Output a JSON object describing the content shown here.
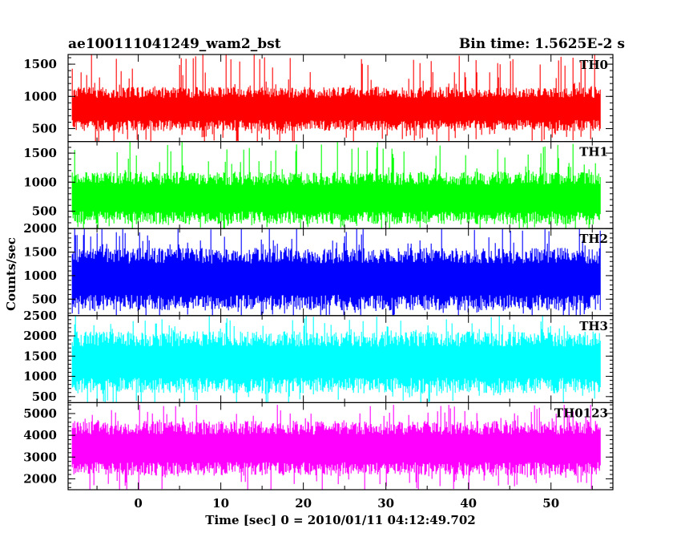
{
  "header": {
    "left_title": "ae100111041249_wam2_bst",
    "right_title": "Bin time: 1.5625E-2 s"
  },
  "axes": {
    "xlabel": "Time [sec] 0 = 2010/01/11 04:12:49.702",
    "ylabel": "Counts/sec"
  },
  "chart_data": {
    "type": "line",
    "title": "ae100111041249_wam2_bst",
    "subtitle": "Bin time: 1.5625E-2 s",
    "xlabel": "Time [sec] 0 = 2010/01/11 04:12:49.702",
    "ylabel": "Counts/sec",
    "xlim": [
      -8.5,
      57.5
    ],
    "data_x_range": [
      -8.0,
      56.0
    ],
    "x_ticks": [
      0,
      10,
      20,
      30,
      40,
      50
    ],
    "x_tick_labels": [
      "0",
      "10",
      "20",
      "30",
      "40",
      "50"
    ],
    "bin_time_s": 0.015625,
    "grid": false,
    "panels": [
      {
        "name": "TH0",
        "color": "#ff0000",
        "ylim": [
          300,
          1650
        ],
        "y_ticks": [
          500,
          1000,
          1500
        ],
        "y_tick_labels": [
          "500",
          "1000",
          "1500"
        ],
        "typical_low": 560,
        "typical_high": 1050,
        "min": 300,
        "max": 1650
      },
      {
        "name": "TH1",
        "color": "#00ff00",
        "ylim": [
          200,
          1700
        ],
        "y_ticks": [
          500,
          1000,
          1500
        ],
        "y_tick_labels": [
          "500",
          "1000",
          "1500"
        ],
        "typical_low": 400,
        "typical_high": 1050,
        "min": 200,
        "max": 1700
      },
      {
        "name": "TH2",
        "color": "#0000ff",
        "ylim": [
          150,
          2000
        ],
        "y_ticks": [
          500,
          1000,
          1500,
          2000
        ],
        "y_tick_labels": [
          "500",
          "1000",
          "1500",
          "2000"
        ],
        "typical_low": 450,
        "typical_high": 1400,
        "min": 150,
        "max": 2000
      },
      {
        "name": "TH3",
        "color": "#00ffff",
        "ylim": [
          350,
          2500
        ],
        "y_ticks": [
          500,
          1000,
          1500,
          2000,
          2500
        ],
        "y_tick_labels": [
          "500",
          "1000",
          "1500",
          "2000",
          "2500"
        ],
        "typical_low": 800,
        "typical_high": 1900,
        "min": 350,
        "max": 2500
      },
      {
        "name": "TH0123",
        "color": "#ff00ff",
        "ylim": [
          1500,
          5500
        ],
        "y_ticks": [
          2000,
          3000,
          4000,
          5000
        ],
        "y_tick_labels": [
          "2000",
          "3000",
          "4000",
          "5000"
        ],
        "typical_low": 2500,
        "typical_high": 4300,
        "min": 1500,
        "max": 5400
      }
    ]
  }
}
